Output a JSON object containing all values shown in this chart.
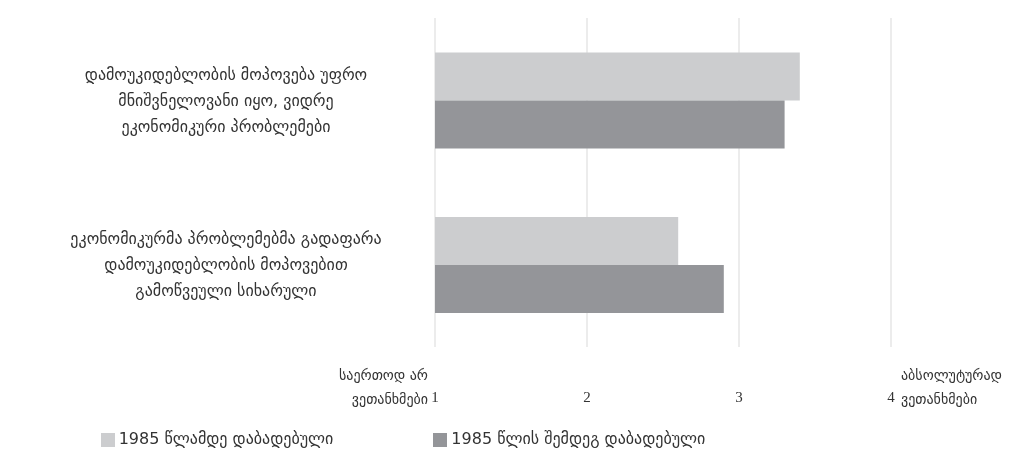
{
  "chart_data": {
    "type": "bar",
    "orientation": "horizontal",
    "categories": [
      "დამოუკიდებლობის მოპოვება უფრო მნიშვნელოვანი იყო, ვიდრე ეკონომიკური პრობლემები",
      "ეკონომიკურმა პრობლემებმა გადაფარა დამოუკიდებლობის მოპოვებით გამოწვეული სიხარული"
    ],
    "series": [
      {
        "name": "1985 წლამდე დაბადებული",
        "color": "#cccdcf",
        "values": [
          3.4,
          2.6
        ]
      },
      {
        "name": "1985 წლის შემდეგ დაბადებული",
        "color": "#949599",
        "values": [
          3.3,
          2.9
        ]
      }
    ],
    "xlim": [
      1,
      4
    ],
    "xticks": [
      1,
      2,
      3,
      4
    ],
    "grid": "x",
    "legend": "bottom",
    "annotations": [
      "საერთოდ არ ვეთანხმები",
      "აბსოლუტურად ვეთანხმები"
    ]
  }
}
